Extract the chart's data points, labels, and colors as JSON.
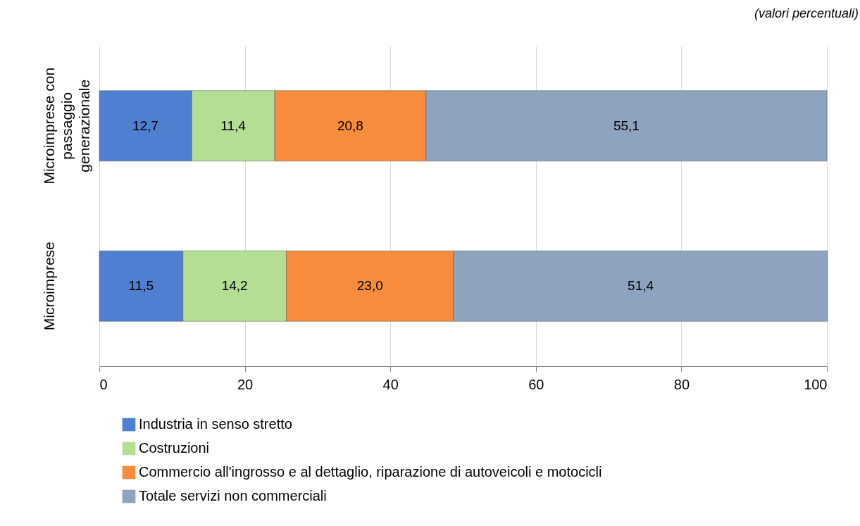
{
  "chart_data": {
    "type": "bar",
    "orientation": "horizontal",
    "stacked": true,
    "categories": [
      "Microimprese con passaggio generazionale",
      "Microimprese"
    ],
    "series": [
      {
        "name": "Industria in senso stretto",
        "color": "#4f7fd0",
        "values": [
          12.7,
          11.5
        ],
        "value_labels": [
          "12,7",
          "11,5"
        ]
      },
      {
        "name": "Costruzioni",
        "color": "#b3de94",
        "values": [
          11.4,
          14.2
        ],
        "value_labels": [
          "11,4",
          "14,2"
        ]
      },
      {
        "name": "Commercio all'ingrosso e al dettaglio, riparazione di autoveicoli e motocicli",
        "color": "#f68c3c",
        "values": [
          20.8,
          23.0
        ],
        "value_labels": [
          "20,8",
          "23,0"
        ]
      },
      {
        "name": "Totale servizi non commerciali",
        "color": "#8da3bf",
        "values": [
          55.1,
          51.4
        ],
        "value_labels": [
          "55,1",
          "51,4"
        ]
      }
    ],
    "xlim": [
      0,
      100
    ],
    "xticks": [
      0,
      20,
      40,
      60,
      80,
      100
    ],
    "grid": "x",
    "legend": "bottom",
    "annotations": [
      "(valori percentuali)"
    ]
  }
}
